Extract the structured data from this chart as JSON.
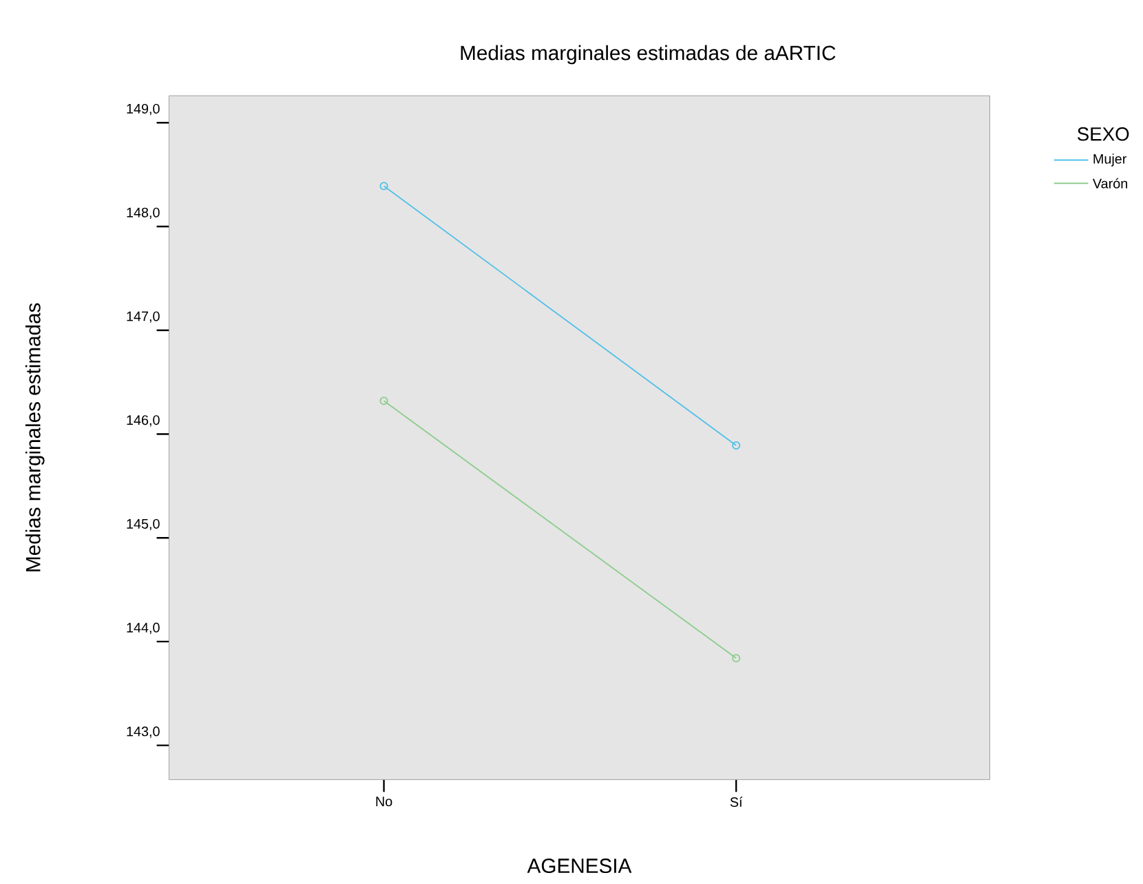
{
  "chart_data": {
    "type": "line",
    "title": "Medias marginales estimadas de aARTIC",
    "xlabel": "AGENESIA",
    "ylabel": "Medias marginales estimadas",
    "legend_title": "SEXO",
    "categories": [
      "No",
      "Sí"
    ],
    "series": [
      {
        "name": "Mujer",
        "color": "#4fbfe8",
        "values": [
          148.39,
          145.89
        ]
      },
      {
        "name": "Varón",
        "color": "#8ccc8c",
        "values": [
          146.32,
          143.84
        ]
      }
    ],
    "ylim": [
      142.67,
      149.26
    ],
    "yticks": [
      {
        "value": 143,
        "label": "143,0"
      },
      {
        "value": 144,
        "label": "144,0"
      },
      {
        "value": 145,
        "label": "145,0"
      },
      {
        "value": 146,
        "label": "146,0"
      },
      {
        "value": 147,
        "label": "147,0"
      },
      {
        "value": 148,
        "label": "148,0"
      },
      {
        "value": 149,
        "label": "149,0"
      }
    ],
    "marker": "circle",
    "line_style": "solid",
    "legend": "top right",
    "grid": false
  }
}
